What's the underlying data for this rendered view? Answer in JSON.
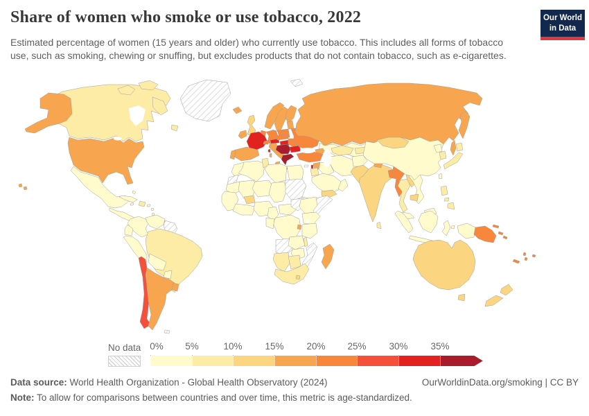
{
  "header": {
    "title": "Share of women who smoke or use tobacco, 2022",
    "subtitle": "Estimated percentage of women (15 years and older) who currently use tobacco. This includes all forms of tobacco use, such as smoking, chewing or snuffing, but excludes products that do not contain tobacco, such as e-cigarettes.",
    "logo_line1": "Our World",
    "logo_line2": "in Data",
    "logo_bg": "#12294d",
    "logo_accent": "#e0383e"
  },
  "legend": {
    "no_data_label": "No data",
    "ticks": [
      "0%",
      "5%",
      "10%",
      "15%",
      "20%",
      "25%",
      "30%",
      "35%"
    ]
  },
  "footer": {
    "source_label": "Data source:",
    "source_text": " World Health Organization - Global Health Observatory (2024)",
    "note_label": "Note:",
    "note_text": " To allow for comparisons between countries and over time, this metric is age-standardized.",
    "right_text": "OurWorldinData.org/smoking | CC BY"
  },
  "chart_data": {
    "type": "choropleth",
    "title": "Share of women who smoke or use tobacco, 2022",
    "unit": "% of women aged 15+ using tobacco",
    "year": "2022",
    "legend_bins": [
      {
        "range": "0-5%",
        "color": "#fffbcd"
      },
      {
        "range": "5-10%",
        "color": "#fdeca6"
      },
      {
        "range": "10-15%",
        "color": "#fbd57f"
      },
      {
        "range": "15-20%",
        "color": "#f8a54f"
      },
      {
        "range": "20-25%",
        "color": "#f8863b"
      },
      {
        "range": "25-30%",
        "color": "#f4503a"
      },
      {
        "range": "30-35%",
        "color": "#e3221f"
      },
      {
        "range": "35%+",
        "color": "#a81c2b"
      }
    ],
    "no_data_color": "hatched",
    "regions": [
      {
        "id": "greenland",
        "name": "Greenland",
        "bin": "No data"
      },
      {
        "id": "svalbard",
        "name": "Svalbard",
        "bin": "No data"
      },
      {
        "id": "guyanas",
        "name": "Guyana, Suriname & French Guiana",
        "bin": "No data"
      },
      {
        "id": "falkland-islands",
        "name": "Falkland Islands",
        "bin": "No data"
      },
      {
        "id": "cyprus",
        "name": "Cyprus",
        "bin": "No data"
      },
      {
        "id": "western-sahara",
        "name": "Western Sahara",
        "bin": "No data"
      },
      {
        "id": "sudan",
        "name": "Sudan",
        "bin": "No data"
      },
      {
        "id": "south-sudan",
        "name": "South Sudan",
        "bin": "No data"
      },
      {
        "id": "somalia",
        "name": "Somalia",
        "bin": "No data"
      },
      {
        "id": "angola",
        "name": "Angola",
        "bin": "No data"
      },
      {
        "id": "mozambique",
        "name": "Mozambique",
        "bin": "No data"
      },
      {
        "id": "mexico",
        "name": "Mexico",
        "bin": "0-5%"
      },
      {
        "id": "central-america",
        "name": "Central America",
        "bin": "0-5%"
      },
      {
        "id": "cuba",
        "name": "Cuba",
        "bin": "0-5%"
      },
      {
        "id": "caribbean",
        "name": "Caribbean islands",
        "bin": "0-5%"
      },
      {
        "id": "colombia",
        "name": "Colombia",
        "bin": "0-5%"
      },
      {
        "id": "venezuela",
        "name": "Venezuela",
        "bin": "0-5%"
      },
      {
        "id": "ecuador",
        "name": "Ecuador",
        "bin": "0-5%"
      },
      {
        "id": "peru",
        "name": "Peru",
        "bin": "0-5%"
      },
      {
        "id": "bolivia",
        "name": "Bolivia",
        "bin": "0-5%"
      },
      {
        "id": "paraguay",
        "name": "Paraguay",
        "bin": "0-5%"
      },
      {
        "id": "kazakhstan",
        "name": "Kazakhstan",
        "bin": "0-5%"
      },
      {
        "id": "iran",
        "name": "Iran",
        "bin": "0-5%"
      },
      {
        "id": "iraq",
        "name": "Iraq",
        "bin": "0-5%"
      },
      {
        "id": "saudi-arabia",
        "name": "Saudi Arabia",
        "bin": "0-5%"
      },
      {
        "id": "oman",
        "name": "Oman",
        "bin": "0-5%"
      },
      {
        "id": "afghanistan",
        "name": "Afghanistan",
        "bin": "0-5%"
      },
      {
        "id": "china",
        "name": "China",
        "bin": "0-5%"
      },
      {
        "id": "taiwan",
        "name": "Taiwan",
        "bin": "0-5%"
      },
      {
        "id": "north-korea",
        "name": "North Korea",
        "bin": "0-5%"
      },
      {
        "id": "vietnam",
        "name": "Vietnam",
        "bin": "0-5%"
      },
      {
        "id": "malaysia",
        "name": "Malaysia",
        "bin": "0-5%"
      },
      {
        "id": "indonesia",
        "name": "Indonesia",
        "bin": "0-5%"
      },
      {
        "id": "morocco",
        "name": "Morocco",
        "bin": "0-5%"
      },
      {
        "id": "algeria",
        "name": "Algeria",
        "bin": "0-5%"
      },
      {
        "id": "libya",
        "name": "Libya",
        "bin": "0-5%"
      },
      {
        "id": "egypt",
        "name": "Egypt",
        "bin": "0-5%"
      },
      {
        "id": "mauritania",
        "name": "Mauritania",
        "bin": "0-5%"
      },
      {
        "id": "mali",
        "name": "Mali",
        "bin": "0-5%"
      },
      {
        "id": "niger",
        "name": "Niger",
        "bin": "0-5%"
      },
      {
        "id": "chad",
        "name": "Chad",
        "bin": "0-5%"
      },
      {
        "id": "west-africa",
        "name": "Senegal & West Africa",
        "bin": "0-5%"
      },
      {
        "id": "ghana-coast",
        "name": "Côte d'Ivoire & Ghana",
        "bin": "0-5%"
      },
      {
        "id": "nigeria",
        "name": "Nigeria",
        "bin": "0-5%"
      },
      {
        "id": "cameroon",
        "name": "Cameroon",
        "bin": "0-5%"
      },
      {
        "id": "central-african-republic",
        "name": "Central African Republic",
        "bin": "0-5%"
      },
      {
        "id": "ethiopia",
        "name": "Ethiopia",
        "bin": "0-5%"
      },
      {
        "id": "eritrea",
        "name": "Eritrea",
        "bin": "0-5%"
      },
      {
        "id": "uganda-kenya",
        "name": "Uganda & Kenya",
        "bin": "0-5%"
      },
      {
        "id": "drc",
        "name": "Democratic Republic of Congo",
        "bin": "0-5%"
      },
      {
        "id": "gabon-congo",
        "name": "Gabon & Congo",
        "bin": "0-5%"
      },
      {
        "id": "tanzania",
        "name": "Tanzania",
        "bin": "0-5%"
      },
      {
        "id": "zambia",
        "name": "Zambia",
        "bin": "0-5%"
      },
      {
        "id": "zimbabwe",
        "name": "Zimbabwe",
        "bin": "0-5%"
      },
      {
        "id": "canada",
        "name": "Canada",
        "bin": "5-10%"
      },
      {
        "id": "hispaniola",
        "name": "Haiti & Dominican Republic",
        "bin": "5-10%"
      },
      {
        "id": "brazil",
        "name": "Brazil",
        "bin": "5-10%"
      },
      {
        "id": "israel-jordan",
        "name": "Israel & Jordan",
        "bin": "5-10%"
      },
      {
        "id": "turkmenistan-uzbekistan",
        "name": "Turkmenistan & Uzbekistan",
        "bin": "5-10%"
      },
      {
        "id": "kyrgyzstan-tajikistan",
        "name": "Kyrgyzstan & Tajikistan",
        "bin": "5-10%"
      },
      {
        "id": "thailand",
        "name": "Thailand",
        "bin": "5-10%"
      },
      {
        "id": "sri-lanka",
        "name": "Sri Lanka",
        "bin": "5-10%"
      },
      {
        "id": "south-korea",
        "name": "South Korea",
        "bin": "5-10%"
      },
      {
        "id": "japan",
        "name": "Japan",
        "bin": "5-10%"
      },
      {
        "id": "philippines",
        "name": "Philippines",
        "bin": "5-10%"
      },
      {
        "id": "tunisia",
        "name": "Tunisia",
        "bin": "5-10%"
      },
      {
        "id": "namibia",
        "name": "Namibia",
        "bin": "5-10%"
      },
      {
        "id": "botswana",
        "name": "Botswana",
        "bin": "5-10%"
      },
      {
        "id": "south-africa",
        "name": "South Africa",
        "bin": "5-10%"
      },
      {
        "id": "malawi",
        "name": "Malawi",
        "bin": "5-10%"
      },
      {
        "id": "united-kingdom",
        "name": "United Kingdom",
        "bin": "10-15%"
      },
      {
        "id": "pakistan",
        "name": "Pakistan",
        "bin": "10-15%"
      },
      {
        "id": "india",
        "name": "India",
        "bin": "10-15%"
      },
      {
        "id": "laos",
        "name": "Laos",
        "bin": "10-15%"
      },
      {
        "id": "cambodia",
        "name": "Cambodia",
        "bin": "10-15%"
      },
      {
        "id": "mongolia",
        "name": "Mongolia",
        "bin": "10-15%"
      },
      {
        "id": "yemen",
        "name": "Yemen",
        "bin": "10-15%"
      },
      {
        "id": "burkina-faso",
        "name": "Burkina Faso",
        "bin": "10-15%"
      },
      {
        "id": "lesotho",
        "name": "Lesotho",
        "bin": "10-15%"
      },
      {
        "id": "australia",
        "name": "Australia",
        "bin": "10-15%"
      },
      {
        "id": "new-zealand",
        "name": "New Zealand",
        "bin": "10-15%"
      },
      {
        "id": "united-states",
        "name": "United States",
        "bin": "15-20%"
      },
      {
        "id": "argentina",
        "name": "Argentina",
        "bin": "15-20%"
      },
      {
        "id": "uruguay",
        "name": "Uruguay",
        "bin": "15-20%"
      },
      {
        "id": "iceland",
        "name": "Iceland",
        "bin": "15-20%"
      },
      {
        "id": "ireland",
        "name": "Ireland",
        "bin": "15-20%"
      },
      {
        "id": "norway",
        "name": "Norway",
        "bin": "15-20%"
      },
      {
        "id": "sweden",
        "name": "Sweden",
        "bin": "15-20%"
      },
      {
        "id": "finland",
        "name": "Finland",
        "bin": "15-20%"
      },
      {
        "id": "denmark",
        "name": "Denmark",
        "bin": "15-20%"
      },
      {
        "id": "baltics",
        "name": "Baltic states",
        "bin": "15-20%"
      },
      {
        "id": "spain",
        "name": "Spain",
        "bin": "15-20%"
      },
      {
        "id": "portugal",
        "name": "Portugal",
        "bin": "15-20%"
      },
      {
        "id": "italy",
        "name": "Italy",
        "bin": "15-20%"
      },
      {
        "id": "nepal",
        "name": "Nepal",
        "bin": "15-20%"
      },
      {
        "id": "russia",
        "name": "Russia",
        "bin": "15-20%"
      },
      {
        "id": "syria",
        "name": "Syria",
        "bin": "15-20%"
      },
      {
        "id": "caucasus",
        "name": "Caucasus",
        "bin": "15-20%"
      },
      {
        "id": "rwanda-burundi",
        "name": "Rwanda & Burundi",
        "bin": "15-20%"
      },
      {
        "id": "madagascar",
        "name": "Madagascar",
        "bin": "15-20%"
      },
      {
        "id": "cape-verde",
        "name": "Cape Verde",
        "bin": "15-20%"
      },
      {
        "id": "poland",
        "name": "Poland",
        "bin": "20-25%"
      },
      {
        "id": "germany",
        "name": "Germany",
        "bin": "20-25%"
      },
      {
        "id": "benelux",
        "name": "Netherlands & Belgium",
        "bin": "20-25%"
      },
      {
        "id": "switzerland",
        "name": "Switzerland",
        "bin": "20-25%"
      },
      {
        "id": "czechia-slovakia",
        "name": "Czechia & Slovakia",
        "bin": "20-25%"
      },
      {
        "id": "belarus",
        "name": "Belarus",
        "bin": "20-25%"
      },
      {
        "id": "ukraine",
        "name": "Ukraine",
        "bin": "20-25%"
      },
      {
        "id": "romania",
        "name": "Romania",
        "bin": "20-25%"
      },
      {
        "id": "turkey",
        "name": "Turkey",
        "bin": "20-25%"
      },
      {
        "id": "bangladesh",
        "name": "Bangladesh",
        "bin": "20-25%"
      },
      {
        "id": "myanmar",
        "name": "Myanmar",
        "bin": "20-25%"
      },
      {
        "id": "papua-new-guinea",
        "name": "Papua New Guinea",
        "bin": "20-25%"
      },
      {
        "id": "solomon-islands",
        "name": "Solomon Islands",
        "bin": "20-25%"
      },
      {
        "id": "vanuatu",
        "name": "Vanuatu",
        "bin": "20-25%"
      },
      {
        "id": "fiji",
        "name": "Fiji",
        "bin": "20-25%"
      },
      {
        "id": "new-caledonia",
        "name": "New Caledonia",
        "bin": "20-25%"
      },
      {
        "id": "chile",
        "name": "Chile",
        "bin": "25-30%"
      },
      {
        "id": "france",
        "name": "France",
        "bin": "30-35%"
      },
      {
        "id": "austria",
        "name": "Austria",
        "bin": "30-35%"
      },
      {
        "id": "hungary",
        "name": "Hungary",
        "bin": "30-35%"
      },
      {
        "id": "bulgaria",
        "name": "Bulgaria",
        "bin": "30-35%"
      },
      {
        "id": "lebanon",
        "name": "Lebanon",
        "bin": "30-35%"
      },
      {
        "id": "western-balkans",
        "name": "Serbia & Western Balkans",
        "bin": "35%+"
      },
      {
        "id": "greece",
        "name": "Greece",
        "bin": "35%+"
      }
    ]
  }
}
